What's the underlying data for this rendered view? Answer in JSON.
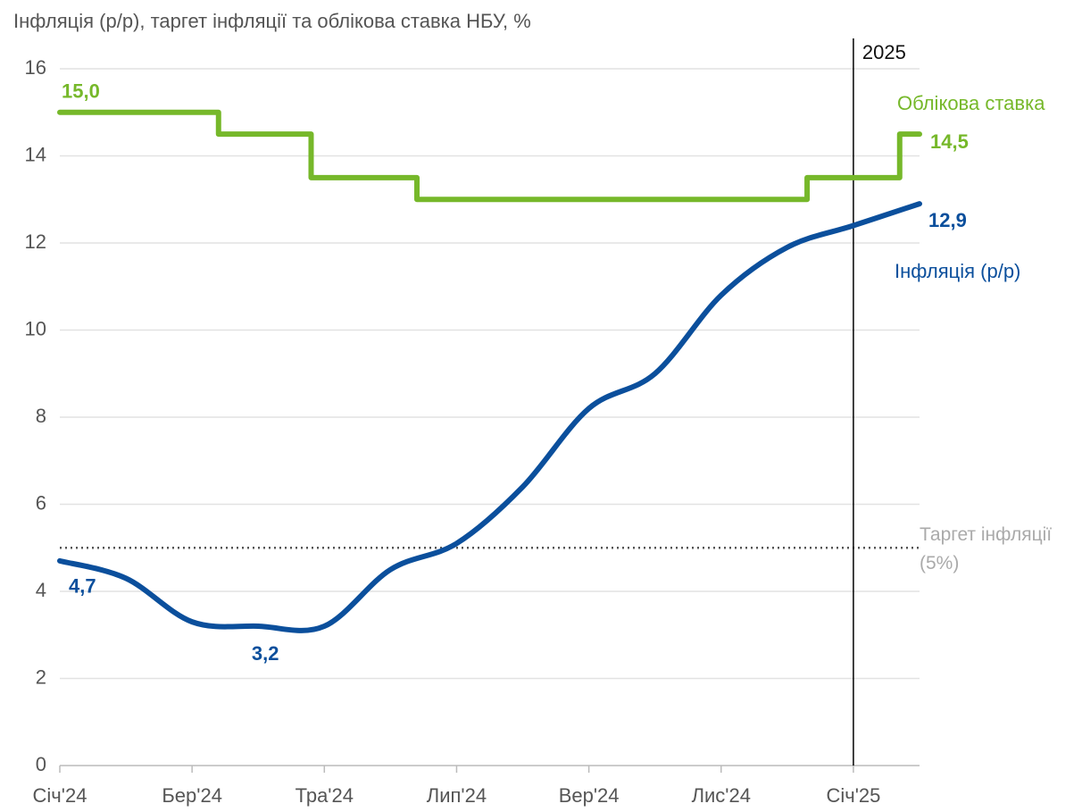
{
  "chart_data": {
    "type": "line",
    "title": "Інфляція (р/р), таргет інфляції та облікова ставка НБУ, %",
    "xlim": [
      0,
      13
    ],
    "xticks": [
      {
        "value": 0,
        "label": "Січ'24"
      },
      {
        "value": 2,
        "label": "Бер'24"
      },
      {
        "value": 4,
        "label": "Тра'24"
      },
      {
        "value": 6,
        "label": "Лип'24"
      },
      {
        "value": 8,
        "label": "Вер'24"
      },
      {
        "value": 10,
        "label": "Лис'24"
      },
      {
        "value": 12,
        "label": "Січ'25"
      }
    ],
    "ylim": [
      0,
      16
    ],
    "yticks": [
      0,
      2,
      4,
      6,
      8,
      10,
      12,
      14,
      16
    ],
    "grid": true,
    "series": [
      {
        "name": "Облікова ставка",
        "color": "#76b82a",
        "x": [
          0,
          2.4,
          2.4,
          3.8,
          3.8,
          5.4,
          5.4,
          11.3,
          11.3,
          12.7,
          12.7,
          13
        ],
        "values": [
          15,
          15,
          14.5,
          14.5,
          13.5,
          13.5,
          13,
          13,
          13.5,
          13.5,
          14.5,
          14.5
        ],
        "value_labels": [
          "15,0",
          null,
          null,
          null,
          null,
          null,
          null,
          null,
          null,
          null,
          null,
          "14,5"
        ]
      },
      {
        "name": "Інфляція (р/р)",
        "color": "#0b4f9c",
        "x": [
          0,
          1,
          2,
          3,
          4,
          5,
          6,
          7,
          8,
          9,
          10,
          11,
          12,
          13
        ],
        "values": [
          4.7,
          4.3,
          3.3,
          3.2,
          3.2,
          4.5,
          5.1,
          6.4,
          8.2,
          9.0,
          10.8,
          11.9,
          12.4,
          12.9
        ],
        "value_labels": [
          "4,7",
          null,
          null,
          "3,2",
          null,
          null,
          null,
          null,
          null,
          null,
          null,
          null,
          null,
          "12,9"
        ]
      }
    ],
    "target": {
      "name": "Таргет інфляції (5%)",
      "value": 5,
      "color": "#555555"
    },
    "annotations": [
      {
        "text": "2025",
        "x": 12
      }
    ]
  }
}
